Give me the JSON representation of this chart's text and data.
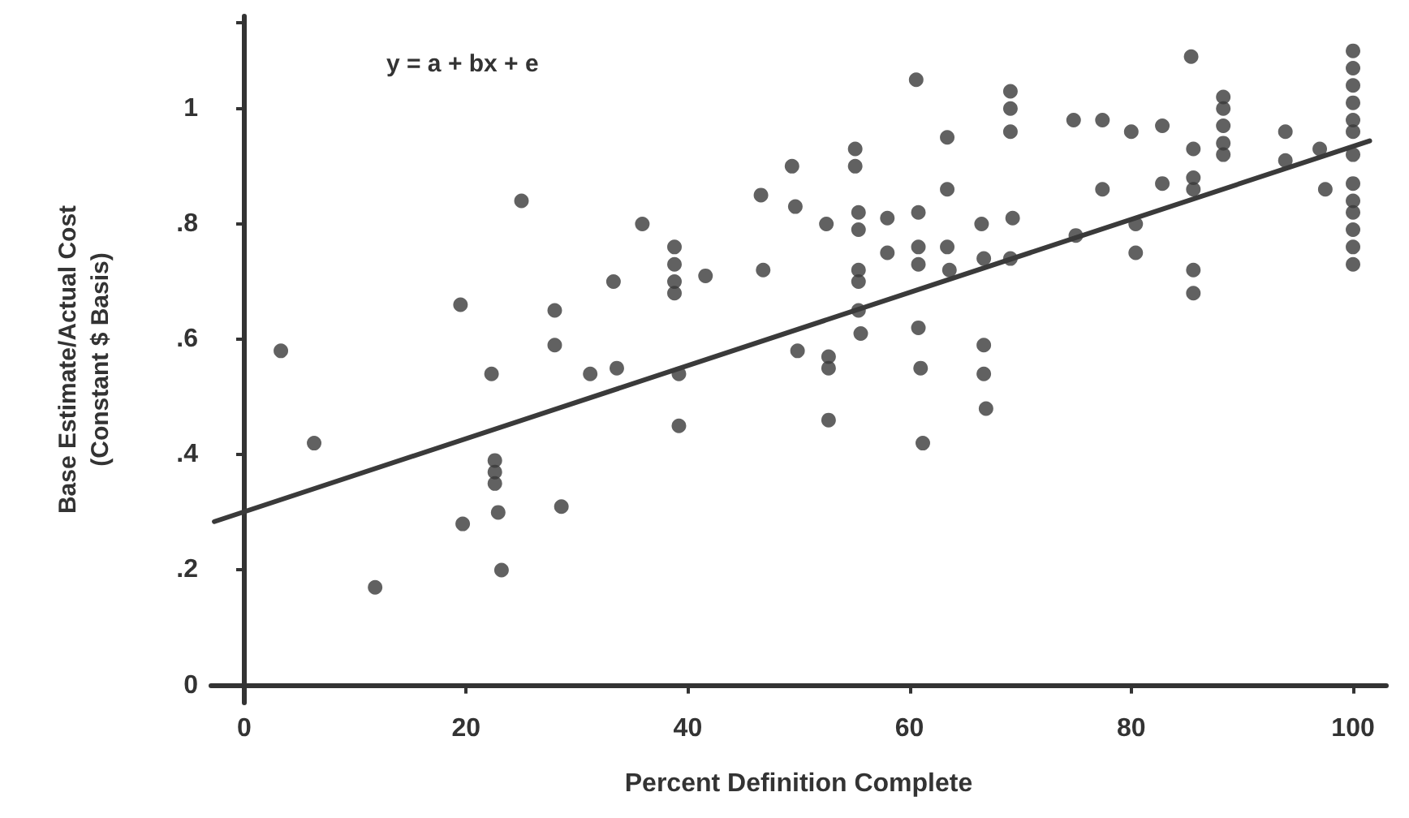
{
  "chart_data": {
    "type": "scatter",
    "xlabel": "Percent Definition Complete",
    "ylabel": "Base Estimate/Actual Cost\n(Constant $ Basis)",
    "annotations": [
      "y = a + bx + e"
    ],
    "xlim": [
      -3,
      103
    ],
    "xticks": [
      0,
      20,
      40,
      60,
      80,
      100
    ],
    "ylim": [
      -0.03,
      1.16
    ],
    "yticks": [
      {
        "value": 0,
        "label": "0"
      },
      {
        "value": 0.2,
        "label": ".2"
      },
      {
        "value": 0.4,
        "label": ".4"
      },
      {
        "value": 0.6,
        "label": ".6"
      },
      {
        "value": 0.8,
        "label": ".8"
      },
      {
        "value": 1,
        "label": "1"
      },
      {
        "value": 1.15,
        "label": null
      }
    ],
    "grid": false,
    "series": [
      {
        "color": "#3a3a3a",
        "marker": "circle",
        "x": [
          3.3,
          6.3,
          11.8,
          19.5,
          19.7,
          22.3,
          22.6,
          22.6,
          22.6,
          22.9,
          23.2,
          25,
          28,
          28,
          28.6,
          31.2,
          33.6,
          33.3,
          35.9,
          38.8,
          38.8,
          38.8,
          38.8,
          41.6,
          39.2,
          39.2,
          46.6,
          46.8,
          49.4,
          49.7,
          49.9,
          52.5,
          52.7,
          52.7,
          52.7,
          55.1,
          55.1,
          55.4,
          55.4,
          55.4,
          55.4,
          55.4,
          55.6,
          58,
          58,
          60.6,
          60.8,
          60.8,
          60.8,
          60.8,
          61,
          61.2,
          63.4,
          63.4,
          63.4,
          63.6,
          66.5,
          66.7,
          66.7,
          66.7,
          66.9,
          69.1,
          69.1,
          69.1,
          69.3,
          69.1,
          74.8,
          75,
          77.4,
          77.4,
          80,
          80.4,
          80.4,
          82.8,
          82.8,
          85.4,
          85.6,
          85.6,
          85.6,
          85.6,
          85.6,
          88.3,
          88.3,
          88.3,
          88.3,
          88.3,
          93.9,
          93.9,
          97,
          97.5,
          100,
          100,
          100,
          100,
          100,
          100,
          100,
          100,
          100,
          100,
          100,
          100,
          100
        ],
        "values": [
          0.58,
          0.42,
          0.17,
          0.66,
          0.28,
          0.54,
          0.39,
          0.37,
          0.35,
          0.3,
          0.2,
          0.84,
          0.65,
          0.59,
          0.31,
          0.54,
          0.55,
          0.7,
          0.8,
          0.76,
          0.73,
          0.7,
          0.68,
          0.71,
          0.54,
          0.45,
          0.85,
          0.72,
          0.9,
          0.83,
          0.58,
          0.8,
          0.57,
          0.55,
          0.46,
          0.93,
          0.9,
          0.82,
          0.79,
          0.72,
          0.7,
          0.65,
          0.61,
          0.81,
          0.75,
          1.05,
          0.82,
          0.76,
          0.73,
          0.62,
          0.55,
          0.42,
          0.95,
          0.86,
          0.76,
          0.72,
          0.8,
          0.74,
          0.59,
          0.54,
          0.48,
          1.03,
          1,
          0.96,
          0.81,
          0.74,
          0.98,
          0.78,
          0.98,
          0.86,
          0.96,
          0.8,
          0.75,
          0.97,
          0.87,
          1.09,
          0.93,
          0.88,
          0.86,
          0.72,
          0.68,
          1.02,
          1,
          0.97,
          0.94,
          0.92,
          0.96,
          0.91,
          0.93,
          0.86,
          1.1,
          1.07,
          1.04,
          1.01,
          0.98,
          0.96,
          0.92,
          0.87,
          0.84,
          0.82,
          0.79,
          0.76,
          0.73
        ]
      },
      {
        "type": "line",
        "color": "#3a3a3a",
        "marker": "none",
        "line_style": "solid",
        "x": [
          -2.7,
          101.5
        ],
        "values": [
          0.284,
          0.944
        ]
      }
    ]
  }
}
